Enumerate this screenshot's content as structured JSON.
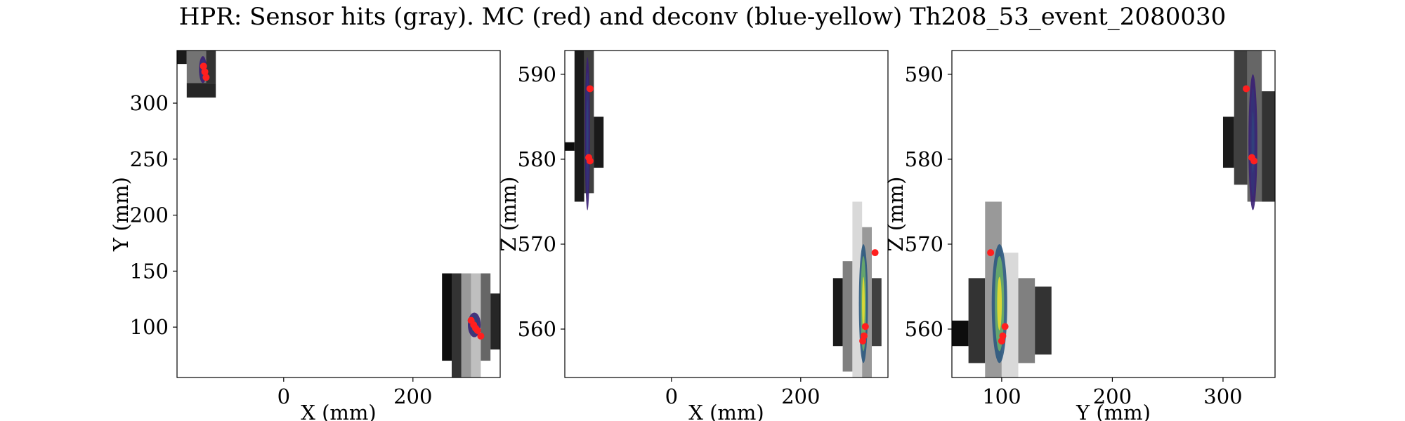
{
  "title": "HPR: Sensor hits (gray). MC (red) and deconv (blue-yellow) Th208_53_event_2080030",
  "colors": {
    "mc": "#ff1f1f",
    "deconv_low": "#3b0f70",
    "deconv_mid": "#21918c",
    "deconv_high": "#fde725",
    "axes": "#000000"
  },
  "chart_data": [
    {
      "type": "heatmap",
      "panel": "XY",
      "xlabel": "X (mm)",
      "ylabel": "Y (mm)",
      "xlim": [
        -165,
        335
      ],
      "ylim": [
        55,
        347
      ],
      "xticks": [
        0,
        200
      ],
      "yticks": [
        100,
        150,
        200,
        250,
        300
      ],
      "hits": [
        {
          "x": [
            -165,
            -150
          ],
          "y": [
            335,
            347
          ],
          "v": 0.1
        },
        {
          "x": [
            -150,
            -120
          ],
          "y": [
            318,
            347
          ],
          "v": 0.45
        },
        {
          "x": [
            -120,
            -105
          ],
          "y": [
            318,
            347
          ],
          "v": 0.2
        },
        {
          "x": [
            -150,
            -105
          ],
          "y": [
            305,
            318
          ],
          "v": 0.15
        },
        {
          "x": [
            245,
            260
          ],
          "y": [
            70,
            148
          ],
          "v": 0.05
        },
        {
          "x": [
            260,
            275
          ],
          "y": [
            55,
            148
          ],
          "v": 0.2
        },
        {
          "x": [
            275,
            290
          ],
          "y": [
            55,
            148
          ],
          "v": 0.6
        },
        {
          "x": [
            290,
            305
          ],
          "y": [
            55,
            148
          ],
          "v": 0.75
        },
        {
          "x": [
            305,
            320
          ],
          "y": [
            70,
            148
          ],
          "v": 0.4
        },
        {
          "x": [
            320,
            335
          ],
          "y": [
            80,
            130
          ],
          "v": 0.15
        }
      ],
      "deconv": [
        {
          "x": -125,
          "y": 330,
          "rx": 6,
          "ry": 12,
          "v": 0.2
        },
        {
          "x": 295,
          "y": 102,
          "rx": 10,
          "ry": 11,
          "v": 0.25
        }
      ],
      "mc": [
        [
          -124,
          333
        ],
        [
          -122,
          328
        ],
        [
          -120,
          323
        ],
        [
          290,
          106
        ],
        [
          294,
          102
        ],
        [
          297,
          99
        ],
        [
          300,
          97
        ],
        [
          305,
          92
        ]
      ]
    },
    {
      "type": "heatmap",
      "panel": "XZ",
      "xlabel": "X (mm)",
      "ylabel": "Z (mm)",
      "xlim": [
        -165,
        335
      ],
      "ylim": [
        554.3,
        592.8
      ],
      "xticks": [
        0,
        200
      ],
      "yticks": [
        560,
        570,
        580,
        590
      ],
      "hits": [
        {
          "x": [
            -165,
            -150
          ],
          "y": [
            581,
            582
          ],
          "v": 0.05
        },
        {
          "x": [
            -150,
            -135
          ],
          "y": [
            575,
            592.8
          ],
          "v": 0.1
        },
        {
          "x": [
            -135,
            -120
          ],
          "y": [
            576,
            592.8
          ],
          "v": 0.25
        },
        {
          "x": [
            -120,
            -105
          ],
          "y": [
            579,
            585
          ],
          "v": 0.1
        },
        {
          "x": [
            250,
            265
          ],
          "y": [
            558,
            566
          ],
          "v": 0.1
        },
        {
          "x": [
            265,
            280
          ],
          "y": [
            555,
            568
          ],
          "v": 0.5
        },
        {
          "x": [
            280,
            295
          ],
          "y": [
            554.3,
            575
          ],
          "v": 0.85
        },
        {
          "x": [
            295,
            310
          ],
          "y": [
            554.3,
            572
          ],
          "v": 0.6
        },
        {
          "x": [
            310,
            325
          ],
          "y": [
            558,
            566
          ],
          "v": 0.25
        }
      ],
      "deconv": [
        {
          "x": -130,
          "y": 583,
          "rx": 4,
          "ry": 9,
          "v": 0.2
        },
        {
          "x": 297,
          "y": 563,
          "rx": 7,
          "ry": 7,
          "v": 0.95
        }
      ],
      "mc": [
        [
          -126,
          588.3
        ],
        [
          -128,
          580.2
        ],
        [
          -126,
          579.8
        ],
        [
          315,
          569
        ],
        [
          300,
          560.3
        ],
        [
          298,
          559.2
        ],
        [
          296,
          558.6
        ]
      ]
    },
    {
      "type": "heatmap",
      "panel": "YZ",
      "xlabel": "Y (mm)",
      "ylabel": "Z (mm)",
      "xlim": [
        55,
        347
      ],
      "ylim": [
        554.3,
        592.8
      ],
      "xticks": [
        100,
        200,
        300
      ],
      "yticks": [
        560,
        570,
        580,
        590
      ],
      "hits": [
        {
          "x": [
            55,
            70
          ],
          "y": [
            558,
            561
          ],
          "v": 0.05
        },
        {
          "x": [
            70,
            85
          ],
          "y": [
            556,
            566
          ],
          "v": 0.2
        },
        {
          "x": [
            85,
            100
          ],
          "y": [
            554.3,
            575
          ],
          "v": 0.6
        },
        {
          "x": [
            100,
            115
          ],
          "y": [
            554.3,
            569
          ],
          "v": 0.85
        },
        {
          "x": [
            115,
            130
          ],
          "y": [
            556,
            566
          ],
          "v": 0.5
        },
        {
          "x": [
            130,
            145
          ],
          "y": [
            557,
            565
          ],
          "v": 0.2
        },
        {
          "x": [
            300,
            310
          ],
          "y": [
            579,
            585
          ],
          "v": 0.1
        },
        {
          "x": [
            310,
            322
          ],
          "y": [
            577,
            592.8
          ],
          "v": 0.25
        },
        {
          "x": [
            322,
            335
          ],
          "y": [
            575,
            592.8
          ],
          "v": 0.4
        },
        {
          "x": [
            335,
            347
          ],
          "y": [
            575,
            588
          ],
          "v": 0.2
        }
      ],
      "deconv": [
        {
          "x": 98,
          "y": 563,
          "rx": 7,
          "ry": 7,
          "v": 0.95
        },
        {
          "x": 327,
          "y": 582,
          "rx": 4,
          "ry": 8,
          "v": 0.2
        }
      ],
      "mc": [
        [
          90,
          569
        ],
        [
          103,
          560.3
        ],
        [
          101,
          559.2
        ],
        [
          100,
          558.6
        ],
        [
          321,
          588.3
        ],
        [
          326,
          580.2
        ],
        [
          328,
          579.8
        ]
      ]
    }
  ]
}
